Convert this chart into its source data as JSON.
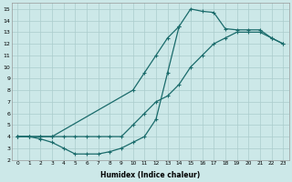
{
  "xlabel": "Humidex (Indice chaleur)",
  "background_color": "#cce8e8",
  "grid_color": "#aacccc",
  "line_color": "#1a6b6b",
  "xlim": [
    -0.5,
    23.5
  ],
  "ylim": [
    2,
    15.5
  ],
  "xticks": [
    0,
    1,
    2,
    3,
    4,
    5,
    6,
    7,
    8,
    9,
    10,
    11,
    12,
    13,
    14,
    15,
    16,
    17,
    18,
    19,
    20,
    21,
    22,
    23
  ],
  "yticks": [
    2,
    3,
    4,
    5,
    6,
    7,
    8,
    9,
    10,
    11,
    12,
    13,
    14,
    15
  ],
  "line1_x": [
    0,
    1,
    2,
    3,
    10,
    11,
    12,
    13,
    14,
    15,
    16,
    17,
    18,
    19,
    20,
    21,
    22,
    23
  ],
  "line1_y": [
    4,
    4,
    4,
    4,
    8,
    9.5,
    11,
    12.5,
    13.5,
    15,
    14.8,
    14.7,
    13.3,
    13.2,
    13.2,
    13.2,
    12.5,
    12.0
  ],
  "line2_x": [
    0,
    1,
    2,
    3,
    4,
    5,
    6,
    7,
    8,
    9,
    10,
    11,
    12,
    13,
    14,
    15,
    16,
    17,
    18,
    19,
    20,
    21,
    22,
    23
  ],
  "line2_y": [
    4,
    4,
    4,
    4,
    4,
    4,
    4,
    4,
    4,
    4,
    5,
    6,
    7,
    7.5,
    8.5,
    10,
    11,
    12,
    12.5,
    13,
    13,
    13,
    12.5,
    12.0
  ],
  "line3_x": [
    0,
    1,
    2,
    3,
    4,
    5,
    6,
    7,
    8,
    9,
    10,
    11,
    12,
    13,
    14
  ],
  "line3_y": [
    4,
    4,
    3.8,
    3.5,
    3.0,
    2.5,
    2.5,
    2.5,
    2.7,
    3.0,
    3.5,
    4.0,
    5.5,
    9.5,
    13.5
  ]
}
